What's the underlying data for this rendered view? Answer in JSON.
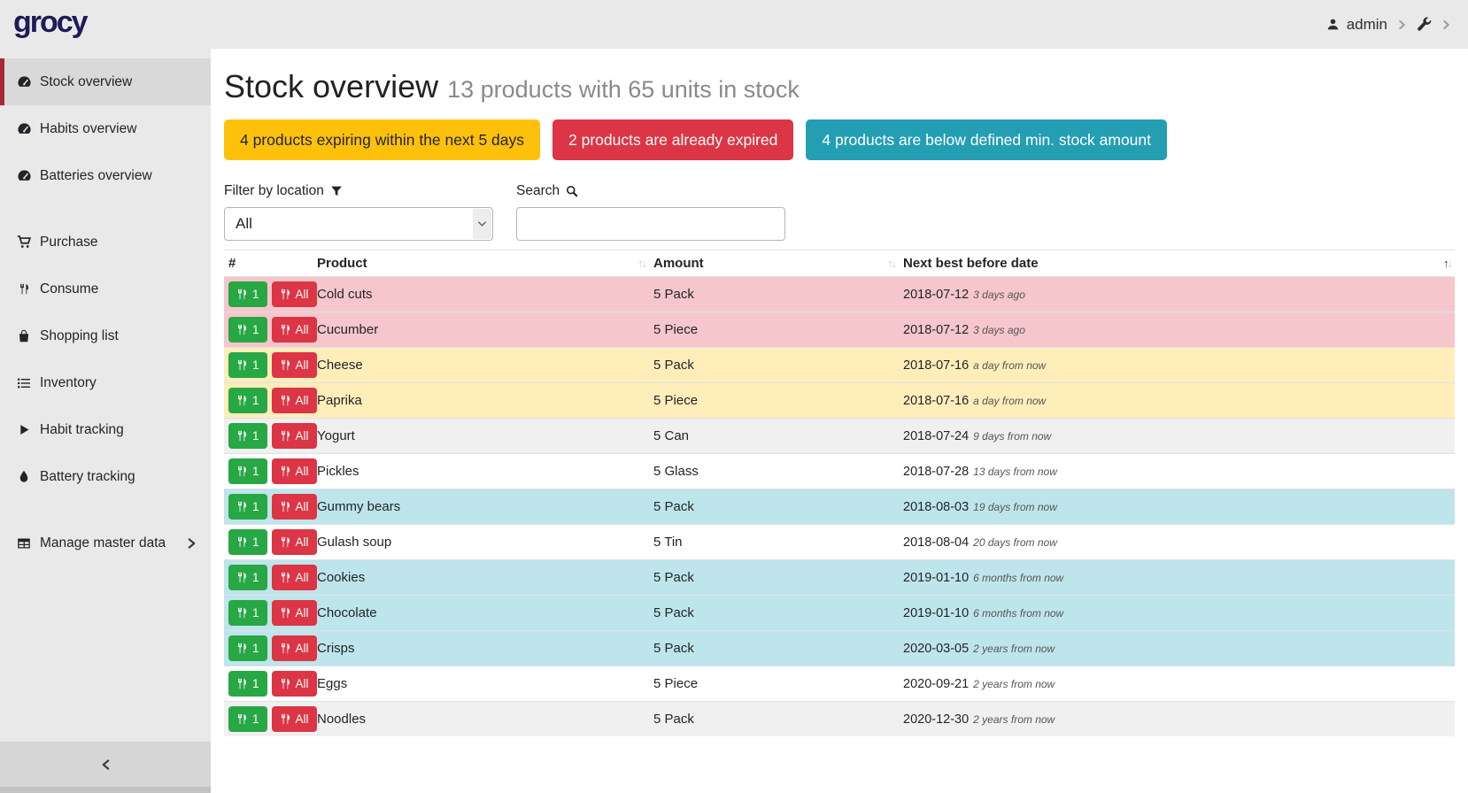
{
  "topbar": {
    "logo": "grocy",
    "user": "admin"
  },
  "sidebar": {
    "groups": [
      {
        "items": [
          {
            "icon": "tachometer-icon",
            "label": "Stock overview",
            "active": true
          },
          {
            "icon": "tachometer-icon",
            "label": "Habits overview"
          },
          {
            "icon": "tachometer-icon",
            "label": "Batteries overview"
          }
        ]
      },
      {
        "items": [
          {
            "icon": "cart-icon",
            "label": "Purchase"
          },
          {
            "icon": "utensils-icon",
            "label": "Consume"
          },
          {
            "icon": "bag-icon",
            "label": "Shopping list"
          },
          {
            "icon": "list-icon",
            "label": "Inventory"
          },
          {
            "icon": "play-icon",
            "label": "Habit tracking"
          },
          {
            "icon": "tint-icon",
            "label": "Battery tracking"
          }
        ]
      },
      {
        "items": [
          {
            "icon": "table-icon",
            "label": "Manage master data",
            "chevron": true
          }
        ]
      }
    ]
  },
  "header": {
    "title": "Stock overview",
    "subtitle": "13 products with 65 units in stock"
  },
  "badges": [
    {
      "label": "4 products expiring within the next 5 days",
      "color": "#fdc10c",
      "text_color": "#212529"
    },
    {
      "label": "2 products are already expired",
      "color": "#dc3545",
      "text_color": "#ffffff"
    },
    {
      "label": "4 products are below defined min. stock amount",
      "color": "#239eb3",
      "text_color": "#ffffff"
    }
  ],
  "filters": {
    "location_label": "Filter by location",
    "location_value": "All",
    "search_label": "Search",
    "search_value": ""
  },
  "table": {
    "columns": [
      "#",
      "Product",
      "Amount",
      "Next best before date"
    ],
    "sort": {
      "column": "Next best before date",
      "direction": "asc"
    },
    "row_actions": {
      "consume_one": "1",
      "consume_all": "All"
    },
    "rows": [
      {
        "product": "Cold cuts",
        "amount": "5 Pack",
        "date": "2018-07-12",
        "relative": "3 days ago",
        "status": "expired"
      },
      {
        "product": "Cucumber",
        "amount": "5 Piece",
        "date": "2018-07-12",
        "relative": "3 days ago",
        "status": "expired"
      },
      {
        "product": "Cheese",
        "amount": "5 Pack",
        "date": "2018-07-16",
        "relative": "a day from now",
        "status": "expiring"
      },
      {
        "product": "Paprika",
        "amount": "5 Piece",
        "date": "2018-07-16",
        "relative": "a day from now",
        "status": "expiring"
      },
      {
        "product": "Yogurt",
        "amount": "5 Can",
        "date": "2018-07-24",
        "relative": "9 days from now",
        "status": ""
      },
      {
        "product": "Pickles",
        "amount": "5 Glass",
        "date": "2018-07-28",
        "relative": "13 days from now",
        "status": ""
      },
      {
        "product": "Gummy bears",
        "amount": "5 Pack",
        "date": "2018-08-03",
        "relative": "19 days from now",
        "status": "below-min"
      },
      {
        "product": "Gulash soup",
        "amount": "5 Tin",
        "date": "2018-08-04",
        "relative": "20 days from now",
        "status": ""
      },
      {
        "product": "Cookies",
        "amount": "5 Pack",
        "date": "2019-01-10",
        "relative": "6 months from now",
        "status": "below-min"
      },
      {
        "product": "Chocolate",
        "amount": "5 Pack",
        "date": "2019-01-10",
        "relative": "6 months from now",
        "status": "below-min"
      },
      {
        "product": "Crisps",
        "amount": "5 Pack",
        "date": "2020-03-05",
        "relative": "2 years from now",
        "status": "below-min"
      },
      {
        "product": "Eggs",
        "amount": "5 Piece",
        "date": "2020-09-21",
        "relative": "2 years from now",
        "status": ""
      },
      {
        "product": "Noodles",
        "amount": "5 Pack",
        "date": "2020-12-30",
        "relative": "2 years from now",
        "status": ""
      }
    ]
  },
  "colors": {
    "logo": "#201a57",
    "sidebar_active_border": "#a82633",
    "expired_row": "#f5c6cb",
    "expiring_row": "#ffeeba",
    "below_min_row": "#bee5eb",
    "stripe_row": "#f0f0f0",
    "consume_one_button": "#28a745",
    "consume_all_button": "#dc3545"
  }
}
